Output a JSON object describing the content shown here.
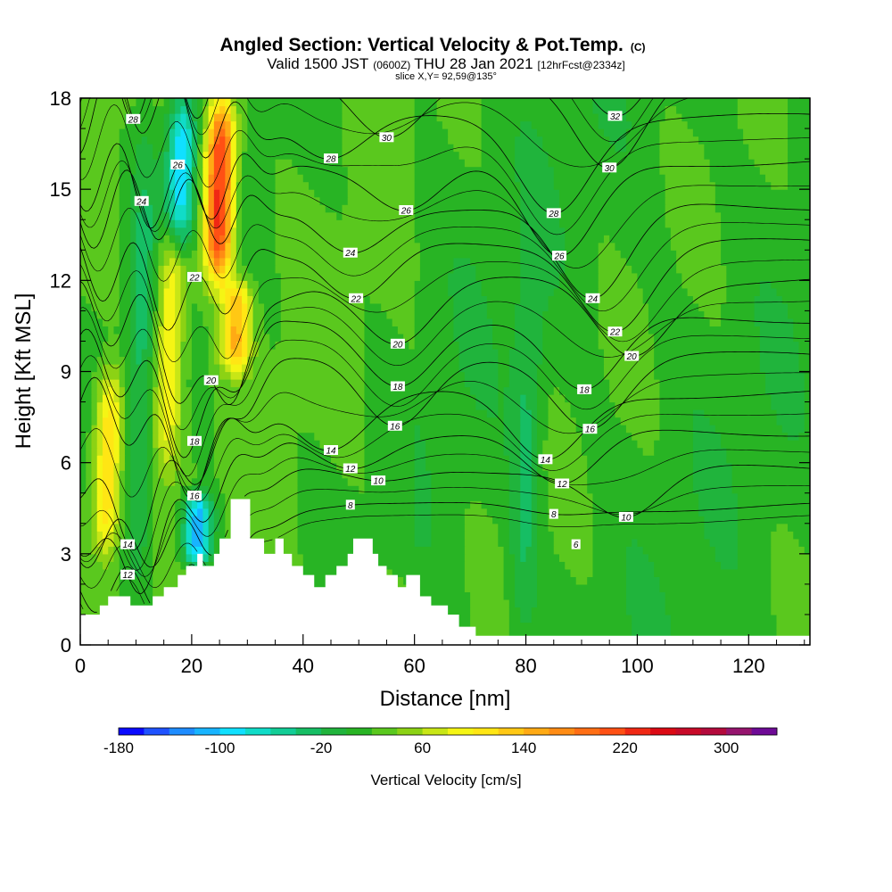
{
  "title": {
    "main": "Angled Section: Vertical Velocity & Pot.Temp.",
    "copyright": "(C)",
    "valid_prefix": "Valid 1500 JST",
    "valid_utc": "(0600Z)",
    "valid_date": "THU 28 Jan 2021",
    "forecast": "[12hrFcst@2334z]",
    "slice": "slice X,Y= 92,59@135°"
  },
  "chart_data": {
    "type": "heatmap",
    "xlabel": "Distance [nm]",
    "ylabel": "Height [Kft MSL]",
    "xlim": [
      0,
      131
    ],
    "ylim": [
      0,
      18
    ],
    "x_ticks": [
      "0",
      "20",
      "40",
      "60",
      "80",
      "100",
      "120"
    ],
    "y_ticks": [
      "0",
      "3",
      "6",
      "9",
      "12",
      "15",
      "18"
    ],
    "colorbar": {
      "label": "Vertical Velocity [cm/s]",
      "range": [
        -180,
        340
      ],
      "step": 20,
      "tick_labels": [
        "-180",
        "-100",
        "-20",
        "60",
        "140",
        "220",
        "300"
      ],
      "colors": [
        "#0a0aff",
        "#1f52ff",
        "#1e8cff",
        "#18b4ff",
        "#10e0ff",
        "#10dcc8",
        "#12cd96",
        "#16be64",
        "#20b43c",
        "#28b424",
        "#5ac81e",
        "#8cd214",
        "#c8e616",
        "#f5f514",
        "#ffe614",
        "#ffc814",
        "#ffaa14",
        "#ff8c14",
        "#ff6e14",
        "#ff5014",
        "#f02814",
        "#dc0a14",
        "#c80a28",
        "#b40a3c",
        "#96146e",
        "#6e0a96"
      ]
    },
    "terrain_profile_kft": [
      [
        0,
        1.0
      ],
      [
        3.5,
        1.0
      ],
      [
        3.5,
        1.3
      ],
      [
        5,
        1.3
      ],
      [
        5,
        1.6
      ],
      [
        9,
        1.6
      ],
      [
        9,
        1.3
      ],
      [
        13,
        1.3
      ],
      [
        13,
        1.6
      ],
      [
        15,
        1.6
      ],
      [
        15,
        1.9
      ],
      [
        17.5,
        1.9
      ],
      [
        17.5,
        2.3
      ],
      [
        19,
        2.3
      ],
      [
        19,
        2.6
      ],
      [
        21,
        2.6
      ],
      [
        21,
        3.0
      ],
      [
        22,
        3.0
      ],
      [
        22,
        2.6
      ],
      [
        24,
        2.6
      ],
      [
        24,
        3.0
      ],
      [
        25,
        3.0
      ],
      [
        25,
        3.5
      ],
      [
        27,
        3.5
      ],
      [
        27,
        4.8
      ],
      [
        30.5,
        4.8
      ],
      [
        30.5,
        3.5
      ],
      [
        33,
        3.5
      ],
      [
        33,
        3.0
      ],
      [
        35,
        3.0
      ],
      [
        35,
        3.5
      ],
      [
        36.5,
        3.5
      ],
      [
        36.5,
        3.0
      ],
      [
        38,
        3.0
      ],
      [
        38,
        2.6
      ],
      [
        40,
        2.6
      ],
      [
        40,
        2.3
      ],
      [
        42,
        2.3
      ],
      [
        42,
        1.9
      ],
      [
        44,
        1.9
      ],
      [
        44,
        2.3
      ],
      [
        46,
        2.3
      ],
      [
        46,
        2.6
      ],
      [
        48,
        2.6
      ],
      [
        48,
        3.0
      ],
      [
        49,
        3.0
      ],
      [
        49,
        3.5
      ],
      [
        52.5,
        3.5
      ],
      [
        52.5,
        3.0
      ],
      [
        53.5,
        3.0
      ],
      [
        53.5,
        2.6
      ],
      [
        55,
        2.6
      ],
      [
        55,
        2.3
      ],
      [
        57,
        2.3
      ],
      [
        57,
        1.9
      ],
      [
        58.5,
        1.9
      ],
      [
        58.5,
        2.3
      ],
      [
        61,
        2.3
      ],
      [
        61,
        1.6
      ],
      [
        63,
        1.6
      ],
      [
        63,
        1.3
      ],
      [
        66,
        1.3
      ],
      [
        66,
        1.0
      ],
      [
        68,
        1.0
      ],
      [
        68,
        0.6
      ],
      [
        71,
        0.6
      ],
      [
        71,
        0.3
      ],
      [
        131,
        0.3
      ]
    ],
    "isentrope_levels": [
      8,
      10,
      12,
      14,
      16,
      18,
      20,
      22,
      24,
      26,
      28,
      30,
      32
    ],
    "isentrope_labels": [
      {
        "text": "28",
        "x": 9.5,
        "y": 17.3
      },
      {
        "text": "26",
        "x": 17.5,
        "y": 15.8
      },
      {
        "text": "24",
        "x": 11,
        "y": 14.6
      },
      {
        "text": "22",
        "x": 20.5,
        "y": 12.1
      },
      {
        "text": "20",
        "x": 23.5,
        "y": 8.7
      },
      {
        "text": "18",
        "x": 20.5,
        "y": 6.7
      },
      {
        "text": "16",
        "x": 20.5,
        "y": 4.9
      },
      {
        "text": "14",
        "x": 8.5,
        "y": 3.3
      },
      {
        "text": "12",
        "x": 8.5,
        "y": 2.3
      },
      {
        "text": "30",
        "x": 55,
        "y": 16.7
      },
      {
        "text": "28",
        "x": 45,
        "y": 16.0
      },
      {
        "text": "26",
        "x": 58.5,
        "y": 14.3
      },
      {
        "text": "24",
        "x": 48.5,
        "y": 12.9
      },
      {
        "text": "22",
        "x": 49.5,
        "y": 11.4
      },
      {
        "text": "20",
        "x": 57,
        "y": 9.9
      },
      {
        "text": "18",
        "x": 57,
        "y": 8.5
      },
      {
        "text": "16",
        "x": 56.5,
        "y": 7.2
      },
      {
        "text": "14",
        "x": 45,
        "y": 6.4
      },
      {
        "text": "12",
        "x": 48.5,
        "y": 5.8
      },
      {
        "text": "10",
        "x": 53.5,
        "y": 5.4
      },
      {
        "text": "8",
        "x": 48.5,
        "y": 4.6
      },
      {
        "text": "32",
        "x": 96,
        "y": 17.4
      },
      {
        "text": "30",
        "x": 95,
        "y": 15.7
      },
      {
        "text": "28",
        "x": 85,
        "y": 14.2
      },
      {
        "text": "26",
        "x": 86,
        "y": 12.8
      },
      {
        "text": "24",
        "x": 92,
        "y": 11.4
      },
      {
        "text": "22",
        "x": 96,
        "y": 10.3
      },
      {
        "text": "20",
        "x": 99,
        "y": 9.5
      },
      {
        "text": "18",
        "x": 90.5,
        "y": 8.4
      },
      {
        "text": "16",
        "x": 91.5,
        "y": 7.1
      },
      {
        "text": "14",
        "x": 83.5,
        "y": 6.1
      },
      {
        "text": "12",
        "x": 86.5,
        "y": 5.3
      },
      {
        "text": "8",
        "x": 85,
        "y": 4.3
      },
      {
        "text": "10",
        "x": 98,
        "y": 4.2
      },
      {
        "text": "6",
        "x": 89,
        "y": 3.3
      }
    ],
    "vertical_velocity_features_cm_s": [
      {
        "x": 5,
        "y_from": 3,
        "y_to": 9,
        "value": 130
      },
      {
        "x": 11,
        "y_from": 2,
        "y_to": 18,
        "value": -20
      },
      {
        "x": 16,
        "y_from": 6,
        "y_to": 14,
        "value": 110
      },
      {
        "x": 18,
        "y_from": 13,
        "y_to": 18,
        "value": -100
      },
      {
        "x": 21,
        "y_from": 2.5,
        "y_to": 5,
        "value": -120
      },
      {
        "x": 25,
        "y_from": 12,
        "y_to": 18,
        "value": 240
      },
      {
        "x": 28,
        "y_from": 9,
        "y_to": 12,
        "value": 140
      },
      {
        "x": 80,
        "y_from": 0.3,
        "y_to": 12,
        "value": -20
      }
    ]
  }
}
